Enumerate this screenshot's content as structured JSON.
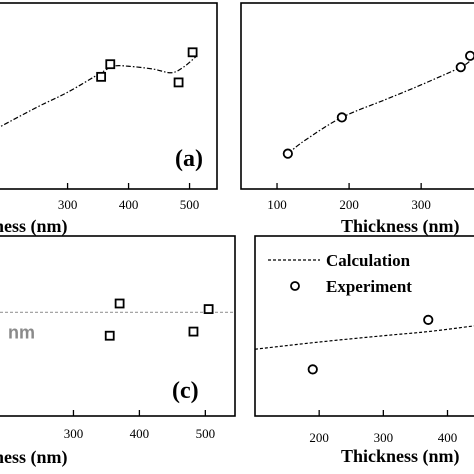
{
  "chart_data": [
    {
      "panel": "a",
      "type": "scatter",
      "panel_label": "(a)",
      "xlabel": "Thickness (nm)",
      "xticks": [
        300,
        400,
        500
      ],
      "xlim": [
        181,
        545
      ],
      "ylim": [
        0,
        1
      ],
      "series": [
        {
          "style": "square-marker",
          "x": [
            355,
            370,
            482,
            505
          ],
          "y": [
            0.603,
            0.671,
            0.573,
            0.735
          ]
        },
        {
          "style": "dash-dot-line",
          "x": [
            181,
            250,
            300,
            355,
            375,
            400,
            440,
            470,
            490,
            510
          ],
          "y": [
            0.32,
            0.44,
            0.52,
            0.625,
            0.66,
            0.66,
            0.645,
            0.625,
            0.655,
            0.71
          ]
        }
      ]
    },
    {
      "panel": "b",
      "type": "scatter",
      "xlabel": "Thickness (nm)",
      "xticks": [
        100,
        200,
        300
      ],
      "xlim": [
        50,
        390
      ],
      "ylim": [
        0,
        1
      ],
      "series": [
        {
          "style": "circle-marker",
          "x": [
            115,
            190,
            355,
            368
          ],
          "y": [
            0.19,
            0.385,
            0.655,
            0.716
          ]
        },
        {
          "style": "dash-dot-line",
          "x": [
            115,
            140,
            190,
            250,
            300,
            355,
            370,
            380
          ],
          "y": [
            0.19,
            0.265,
            0.385,
            0.48,
            0.56,
            0.655,
            0.695,
            0.716
          ]
        }
      ]
    },
    {
      "panel": "c",
      "type": "scatter",
      "panel_label": "(c)",
      "xlabel": "Thickness (nm)",
      "xticks": [
        300,
        400,
        500
      ],
      "xlim": [
        181,
        545
      ],
      "ylim": [
        0,
        1
      ],
      "reference_line": {
        "y": 0.576,
        "label": "nm"
      },
      "series": [
        {
          "style": "square-marker",
          "x": [
            355,
            370,
            482,
            505
          ],
          "y": [
            0.446,
            0.625,
            0.469,
            0.594
          ]
        }
      ]
    },
    {
      "panel": "d",
      "type": "scatter",
      "xlabel": "Thickness (nm)",
      "xticks": [
        200,
        300,
        400
      ],
      "xlim": [
        100,
        460
      ],
      "ylim": [
        0,
        1
      ],
      "legend": {
        "position": "top-left",
        "entries": [
          "Calculation",
          "Experiment"
        ]
      },
      "series": [
        {
          "name": "Calculation",
          "style": "dashed-line",
          "x": [
            100,
            200,
            300,
            370,
            440,
            460
          ],
          "y": [
            0.371,
            0.411,
            0.446,
            0.469,
            0.5,
            0.51
          ]
        },
        {
          "name": "Experiment",
          "style": "circle-marker",
          "x": [
            190,
            370
          ],
          "y": [
            0.259,
            0.534
          ]
        }
      ]
    }
  ]
}
